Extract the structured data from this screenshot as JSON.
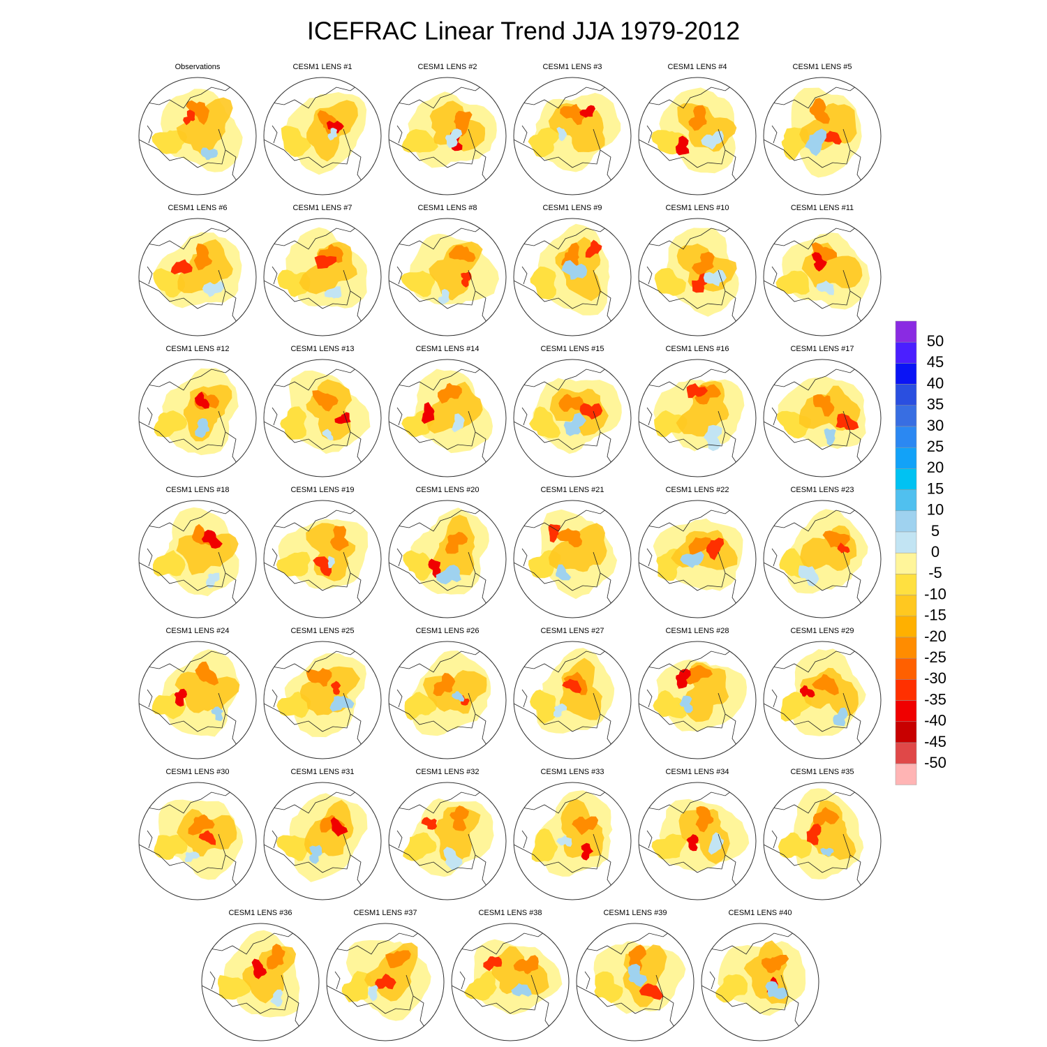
{
  "title": "ICEFRAC Linear Trend JJA 1979-2012",
  "panels": [
    "Observations",
    "CESM1 LENS #1",
    "CESM1 LENS #2",
    "CESM1 LENS #3",
    "CESM1 LENS #4",
    "CESM1 LENS #5",
    "CESM1 LENS #6",
    "CESM1 LENS #7",
    "CESM1 LENS #8",
    "CESM1 LENS #9",
    "CESM1 LENS #10",
    "CESM1 LENS #11",
    "CESM1 LENS #12",
    "CESM1 LENS #13",
    "CESM1 LENS #14",
    "CESM1 LENS #15",
    "CESM1 LENS #16",
    "CESM1 LENS #17",
    "CESM1 LENS #18",
    "CESM1 LENS #19",
    "CESM1 LENS #20",
    "CESM1 LENS #21",
    "CESM1 LENS #22",
    "CESM1 LENS #23",
    "CESM1 LENS #24",
    "CESM1 LENS #25",
    "CESM1 LENS #26",
    "CESM1 LENS #27",
    "CESM1 LENS #28",
    "CESM1 LENS #29",
    "CESM1 LENS #30",
    "CESM1 LENS #31",
    "CESM1 LENS #32",
    "CESM1 LENS #33",
    "CESM1 LENS #34",
    "CESM1 LENS #35",
    "CESM1 LENS #36",
    "CESM1 LENS #37",
    "CESM1 LENS #38",
    "CESM1 LENS #39",
    "CESM1 LENS #40"
  ],
  "colorbar": {
    "levels": [
      50,
      45,
      40,
      35,
      30,
      25,
      20,
      15,
      10,
      5,
      0,
      -5,
      -10,
      -15,
      -20,
      -25,
      -30,
      -35,
      -40,
      -45,
      -50
    ],
    "colors": [
      "#8a2be2",
      "#4b1fff",
      "#0a14f5",
      "#2a4fe0",
      "#386ee2",
      "#2b88f2",
      "#12a2f8",
      "#00c2f2",
      "#50c0ef",
      "#9fd2ef",
      "#c2e4f3",
      "#fff59a",
      "#ffe040",
      "#ffc820",
      "#ffb000",
      "#ff8c00",
      "#ff6000",
      "#ff3000",
      "#f00000",
      "#c80000",
      "#e04848",
      "#ffb4b4"
    ]
  }
}
